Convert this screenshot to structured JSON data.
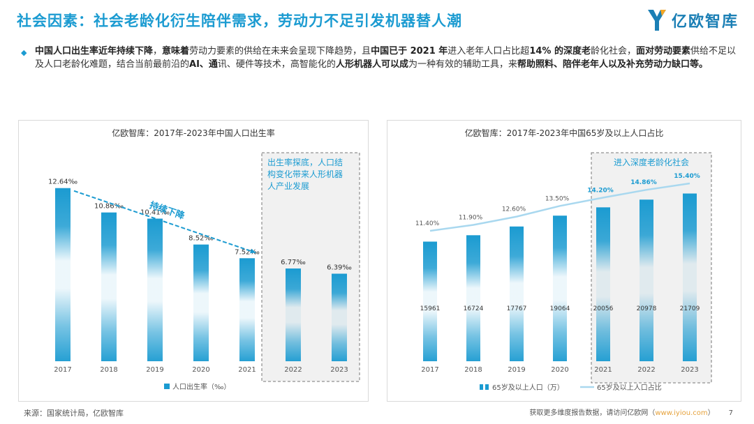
{
  "header": {
    "title": "社会因素：社会老龄化衍生陪伴需求，劳动力不足引发机器替人潮",
    "logo_text": "亿欧智库"
  },
  "intro": {
    "segments": [
      {
        "t": "中国人口出生率近年持续下降",
        "b": true
      },
      {
        "t": "，",
        "b": false
      },
      {
        "t": "意味着",
        "b": true
      },
      {
        "t": "劳动力要素的供给在未来会呈现下降趋势，且",
        "b": false
      },
      {
        "t": "中国已于 2021 年",
        "b": true
      },
      {
        "t": "进入老年人口占比超",
        "b": false
      },
      {
        "t": "14% 的深度老",
        "b": true
      },
      {
        "t": "龄化社会，",
        "b": false
      },
      {
        "t": "面对劳动要素",
        "b": true
      },
      {
        "t": "供给不足以及人口老龄化难题，结合当前最前沿的",
        "b": false
      },
      {
        "t": "AI、通",
        "b": true
      },
      {
        "t": "讯、硬件等技术，高智能化的",
        "b": false
      },
      {
        "t": "人形机器人可以成",
        "b": true
      },
      {
        "t": "为一种有效的辅助工具，来",
        "b": false
      },
      {
        "t": "帮助照料、陪伴老年人以及补充劳动力缺口等。",
        "b": true
      }
    ]
  },
  "chart_data": [
    {
      "type": "bar",
      "title": "亿欧智库：2017年-2023年中国人口出生率",
      "categories": [
        "2017",
        "2018",
        "2019",
        "2020",
        "2021",
        "2022",
        "2023"
      ],
      "series": [
        {
          "name": "人口出生率（‰）",
          "values": [
            12.64,
            10.86,
            10.41,
            8.52,
            7.52,
            6.77,
            6.39
          ]
        }
      ],
      "value_labels": [
        "12.64‰",
        "10.86‰",
        "10.41‰",
        "8.52‰",
        "7.52‰",
        "6.77‰",
        "6.39‰"
      ],
      "ylim": [
        0,
        14
      ],
      "annotations": {
        "trend_label": "持续下降",
        "box_text": [
          "出生率探底，人口结",
          "构变化带来人形机器",
          "人产业发展"
        ]
      },
      "legend": "人口出生率（‰）",
      "colors": {
        "bar": "#1b9bd1",
        "trend": "#1b9bd1"
      }
    },
    {
      "type": "bar",
      "title": "亿欧智库：2017年-2023年中国65岁及以上人口占比",
      "categories": [
        "2017",
        "2018",
        "2019",
        "2020",
        "2021",
        "2022",
        "2023"
      ],
      "series": [
        {
          "name": "65岁及以上人口（万）",
          "values": [
            15961,
            16724,
            17767,
            19064,
            20056,
            20978,
            21709
          ]
        },
        {
          "name": "65岁及以上人口占比",
          "values": [
            11.4,
            11.9,
            12.6,
            13.5,
            14.2,
            14.86,
            15.4
          ]
        }
      ],
      "bar_labels": [
        "15961",
        "16724",
        "17767",
        "19064",
        "20056",
        "20978",
        "21709"
      ],
      "pct_labels": [
        "11.40%",
        "11.90%",
        "12.60%",
        "13.50%",
        "14.20%",
        "14.86%",
        "15.40%"
      ],
      "ylim": [
        0,
        25000
      ],
      "annotations": {
        "box_text": "进入深度老龄化社会"
      },
      "legend": [
        "65岁及以上人口（万）",
        "65岁及以上人口占比"
      ],
      "colors": {
        "bar": "#1b9bd1",
        "line": "#a9d8ef",
        "pct_highlight": "#1b9bd1",
        "pct_normal": "#555555"
      }
    }
  ],
  "footer": {
    "source": "来源：国家统计局，亿欧智库",
    "note_prefix": "获取更多维度报告数据，请访问亿欧网（",
    "url": "www.iyiou.com",
    "note_suffix": "）",
    "page": "7"
  }
}
